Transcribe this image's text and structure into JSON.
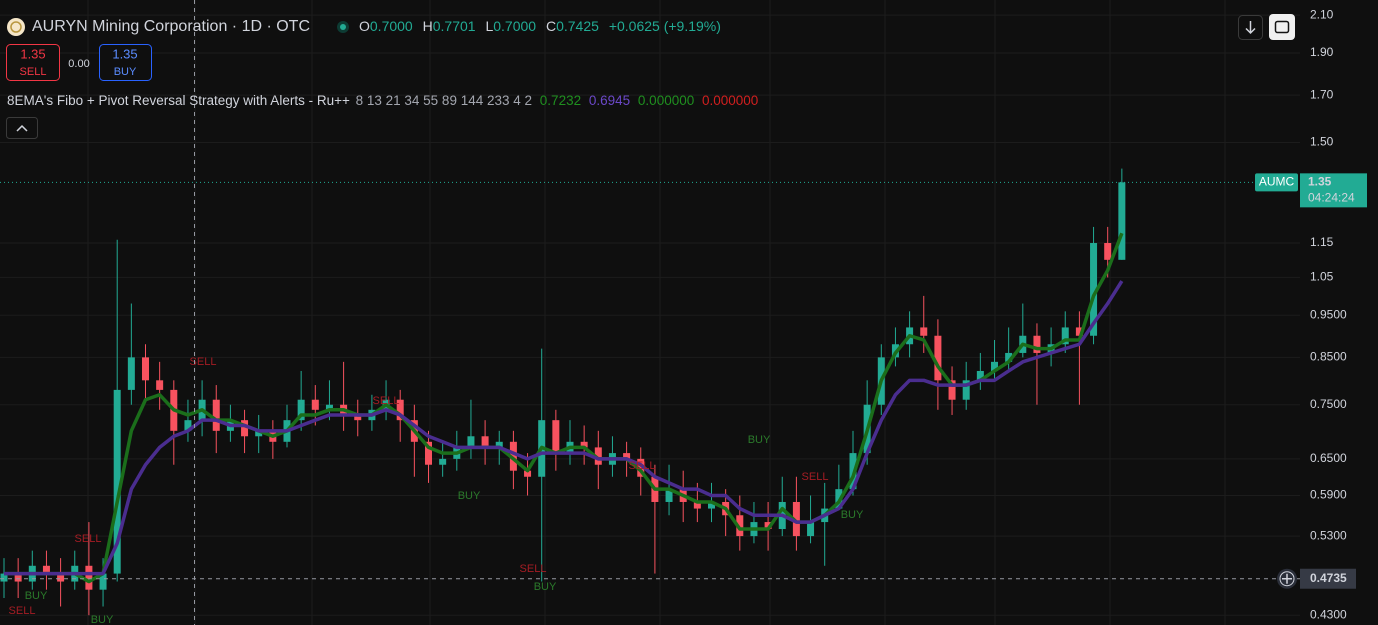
{
  "chart_data": {
    "type": "candlestick",
    "title": "AURYN Mining Corporation · 1D · OTC",
    "ohlc_labels": [
      "O",
      "H",
      "L",
      "C"
    ],
    "ohlc_values": [
      "0.7000",
      "0.7701",
      "0.7000",
      "0.7425"
    ],
    "change": "+0.0625 (+9.19%)",
    "trade": {
      "sell_price": "1.35",
      "sell": "SELL",
      "spread": "0.00",
      "buy_price": "1.35",
      "buy": "BUY"
    },
    "indicator": {
      "name": "8EMA's Fibo + Pivot Reversal Strategy with Alerts - Ru++",
      "params": "8 13 21 34 55 89 144 233 4 2",
      "values": [
        "0.7232",
        "0.6945",
        "0.000000",
        "0.000000"
      ]
    },
    "symbol_tag": "AUMC",
    "countdown": "04:24:24",
    "crosshair_value": 0.4735,
    "log_scale": true,
    "grid": true,
    "up_color": "#22ab94",
    "down_color": "#f7525f",
    "ylim": [
      0.419,
      2.186
    ],
    "yticks": [
      {
        "value": 0.43,
        "label": "0.4300"
      },
      {
        "value": 0.53,
        "label": "0.5300"
      },
      {
        "value": 0.59,
        "label": "0.5900"
      },
      {
        "value": 0.65,
        "label": "0.6500"
      },
      {
        "value": 0.75,
        "label": "0.7500"
      },
      {
        "value": 0.85,
        "label": "0.8500"
      },
      {
        "value": 0.95,
        "label": "0.9500"
      },
      1.05,
      1.15,
      {
        "value": 1.5,
        "label": "1.50"
      },
      {
        "value": 1.7,
        "label": "1.70"
      },
      {
        "value": 1.9,
        "label": "1.90"
      },
      {
        "value": 2.1,
        "label": "2.10"
      }
    ],
    "open": [
      0.47,
      0.48,
      0.47,
      0.49,
      0.48,
      0.47,
      0.49,
      0.46,
      0.48,
      0.78,
      0.85,
      0.8,
      0.78,
      0.7,
      0.72,
      0.76,
      0.7,
      0.72,
      0.69,
      0.7,
      0.68,
      0.72,
      0.76,
      0.74,
      0.75,
      0.73,
      0.72,
      0.74,
      0.76,
      0.72,
      0.68,
      0.64,
      0.65,
      0.67,
      0.69,
      0.67,
      0.68,
      0.63,
      0.62,
      0.72,
      0.66,
      0.68,
      0.67,
      0.64,
      0.66,
      0.65,
      0.62,
      0.58,
      0.6,
      0.58,
      0.57,
      0.58,
      0.56,
      0.53,
      0.55,
      0.54,
      0.58,
      0.53,
      0.55,
      0.57,
      0.6,
      0.66,
      0.75,
      0.85,
      0.88,
      0.92,
      0.9,
      0.8,
      0.76,
      0.8,
      0.82,
      0.84,
      0.86,
      0.9,
      0.86,
      0.88,
      0.92,
      0.9,
      1.15,
      1.1
    ],
    "high": [
      0.5,
      0.5,
      0.51,
      0.51,
      0.5,
      0.51,
      0.55,
      0.5,
      1.16,
      0.98,
      0.88,
      0.84,
      0.8,
      0.76,
      0.8,
      0.79,
      0.75,
      0.74,
      0.73,
      0.72,
      0.75,
      0.82,
      0.79,
      0.8,
      0.84,
      0.76,
      0.77,
      0.8,
      0.78,
      0.75,
      0.7,
      0.68,
      0.7,
      0.76,
      0.72,
      0.7,
      0.7,
      0.66,
      0.87,
      0.74,
      0.72,
      0.71,
      0.7,
      0.69,
      0.68,
      0.67,
      0.64,
      0.64,
      0.63,
      0.61,
      0.61,
      0.6,
      0.59,
      0.58,
      0.58,
      0.62,
      0.62,
      0.59,
      0.61,
      0.64,
      0.7,
      0.8,
      0.88,
      0.92,
      0.96,
      1.0,
      0.94,
      0.83,
      0.84,
      0.86,
      0.89,
      0.92,
      0.98,
      0.93,
      0.92,
      0.96,
      0.96,
      1.2,
      1.2,
      1.4
    ],
    "low": [
      0.45,
      0.45,
      0.46,
      0.46,
      0.44,
      0.46,
      0.43,
      0.44,
      0.47,
      0.75,
      0.76,
      0.74,
      0.64,
      0.68,
      0.69,
      0.66,
      0.68,
      0.66,
      0.66,
      0.65,
      0.67,
      0.7,
      0.71,
      0.72,
      0.7,
      0.69,
      0.7,
      0.72,
      0.68,
      0.62,
      0.61,
      0.62,
      0.63,
      0.65,
      0.64,
      0.64,
      0.6,
      0.59,
      0.47,
      0.63,
      0.64,
      0.64,
      0.6,
      0.62,
      0.62,
      0.59,
      0.48,
      0.56,
      0.55,
      0.55,
      0.55,
      0.53,
      0.51,
      0.52,
      0.51,
      0.53,
      0.51,
      0.52,
      0.49,
      0.57,
      0.59,
      0.64,
      0.73,
      0.83,
      0.85,
      0.86,
      0.74,
      0.73,
      0.74,
      0.78,
      0.8,
      0.82,
      0.85,
      0.75,
      0.83,
      0.86,
      0.75,
      0.88,
      1.05,
      1.1
    ],
    "close": [
      0.48,
      0.47,
      0.49,
      0.48,
      0.47,
      0.49,
      0.46,
      0.48,
      0.78,
      0.85,
      0.8,
      0.78,
      0.7,
      0.72,
      0.76,
      0.7,
      0.72,
      0.69,
      0.7,
      0.68,
      0.72,
      0.76,
      0.74,
      0.75,
      0.73,
      0.72,
      0.74,
      0.76,
      0.72,
      0.68,
      0.64,
      0.65,
      0.67,
      0.69,
      0.67,
      0.68,
      0.63,
      0.62,
      0.72,
      0.66,
      0.68,
      0.67,
      0.64,
      0.66,
      0.65,
      0.62,
      0.58,
      0.6,
      0.58,
      0.57,
      0.58,
      0.56,
      0.53,
      0.55,
      0.54,
      0.58,
      0.53,
      0.55,
      0.57,
      0.6,
      0.66,
      0.75,
      0.85,
      0.88,
      0.92,
      0.9,
      0.8,
      0.76,
      0.8,
      0.82,
      0.84,
      0.86,
      0.9,
      0.86,
      0.88,
      0.92,
      0.9,
      1.15,
      1.1,
      1.35
    ],
    "lines": [
      {
        "color": "#1b6e1b",
        "values": [
          0.48,
          0.48,
          0.48,
          0.48,
          0.48,
          0.48,
          0.47,
          0.48,
          0.58,
          0.7,
          0.76,
          0.77,
          0.74,
          0.73,
          0.74,
          0.72,
          0.72,
          0.71,
          0.7,
          0.69,
          0.7,
          0.73,
          0.73,
          0.74,
          0.74,
          0.73,
          0.73,
          0.75,
          0.73,
          0.7,
          0.67,
          0.66,
          0.66,
          0.67,
          0.67,
          0.67,
          0.65,
          0.63,
          0.67,
          0.66,
          0.67,
          0.67,
          0.65,
          0.65,
          0.65,
          0.63,
          0.6,
          0.6,
          0.59,
          0.58,
          0.58,
          0.57,
          0.54,
          0.54,
          0.54,
          0.57,
          0.55,
          0.55,
          0.56,
          0.58,
          0.62,
          0.7,
          0.8,
          0.86,
          0.9,
          0.89,
          0.83,
          0.79,
          0.79,
          0.8,
          0.82,
          0.84,
          0.88,
          0.87,
          0.87,
          0.89,
          0.89,
          1.0,
          1.07,
          1.18
        ]
      },
      {
        "color": "#4a2d8f",
        "values": [
          0.48,
          0.48,
          0.48,
          0.48,
          0.48,
          0.48,
          0.48,
          0.48,
          0.52,
          0.6,
          0.64,
          0.67,
          0.69,
          0.7,
          0.72,
          0.72,
          0.71,
          0.71,
          0.7,
          0.7,
          0.7,
          0.71,
          0.72,
          0.73,
          0.73,
          0.73,
          0.73,
          0.74,
          0.73,
          0.71,
          0.69,
          0.68,
          0.67,
          0.67,
          0.67,
          0.67,
          0.66,
          0.65,
          0.66,
          0.66,
          0.66,
          0.66,
          0.65,
          0.65,
          0.65,
          0.64,
          0.62,
          0.61,
          0.6,
          0.6,
          0.59,
          0.59,
          0.57,
          0.56,
          0.56,
          0.56,
          0.55,
          0.55,
          0.56,
          0.57,
          0.6,
          0.66,
          0.72,
          0.77,
          0.8,
          0.8,
          0.79,
          0.79,
          0.79,
          0.8,
          0.8,
          0.82,
          0.84,
          0.85,
          0.86,
          0.87,
          0.88,
          0.93,
          0.98,
          1.04
        ]
      }
    ],
    "signals": [
      "SELL",
      "SELL",
      "BUY",
      "BUY",
      "SELL",
      "SELL",
      "BUY",
      "SELL",
      "SELL",
      "BUY",
      "BUY",
      "SELL",
      "BUY"
    ]
  }
}
